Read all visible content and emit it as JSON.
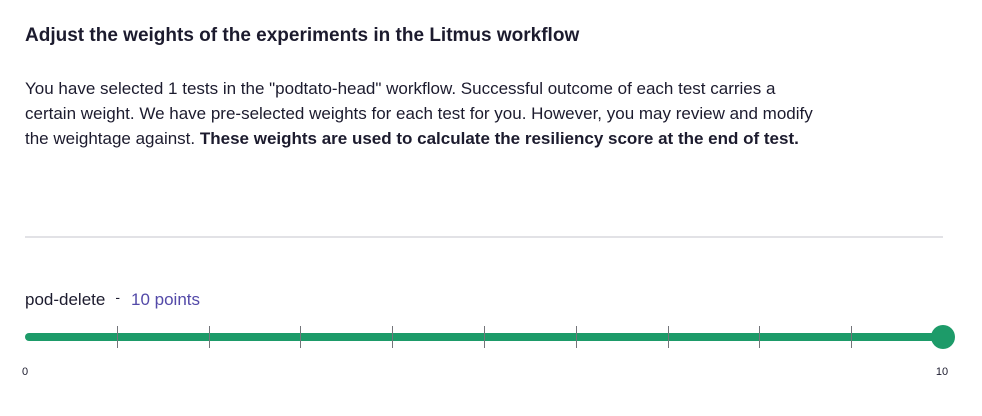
{
  "heading": {
    "title": "Adjust the weights of the experiments in the Litmus workflow"
  },
  "description": {
    "text": "You have selected 1 tests in the \"podtato-head\" workflow. Successful outcome of each test carries a certain weight. We have pre-selected weights for each test for you. However, you may review and modify the weightage against.",
    "emphasis": "These weights are used to calculate the resiliency score at the end of test."
  },
  "experiments": [
    {
      "name": "pod-delete",
      "separator": "-",
      "points_label": "10 points",
      "weight": 10,
      "min": 0,
      "max": 10,
      "min_label": "0",
      "max_label": "10"
    }
  ],
  "colors": {
    "slider": "#1d9b69",
    "points_text": "#5349a8",
    "divider": "#e2e2e6"
  }
}
